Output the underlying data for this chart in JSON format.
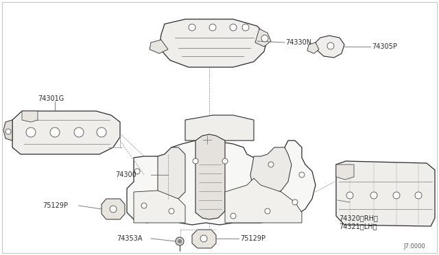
{
  "bg": "#ffffff",
  "lc": "#2a2a2a",
  "lc_light": "#555555",
  "lc_thin": "#888888",
  "fs": 7,
  "fs_code": 6,
  "diagram_code": "J7:0000",
  "parts": {
    "floor_panel": "74300",
    "dash_xmember": "74330N",
    "bracket_rh": "74305P",
    "side_member": "74301G",
    "sill_rh": "74320<RH>",
    "sill_lh": "74321<LH>",
    "plug1": "75129P",
    "plug2": "75129P",
    "drain": "74353A"
  }
}
